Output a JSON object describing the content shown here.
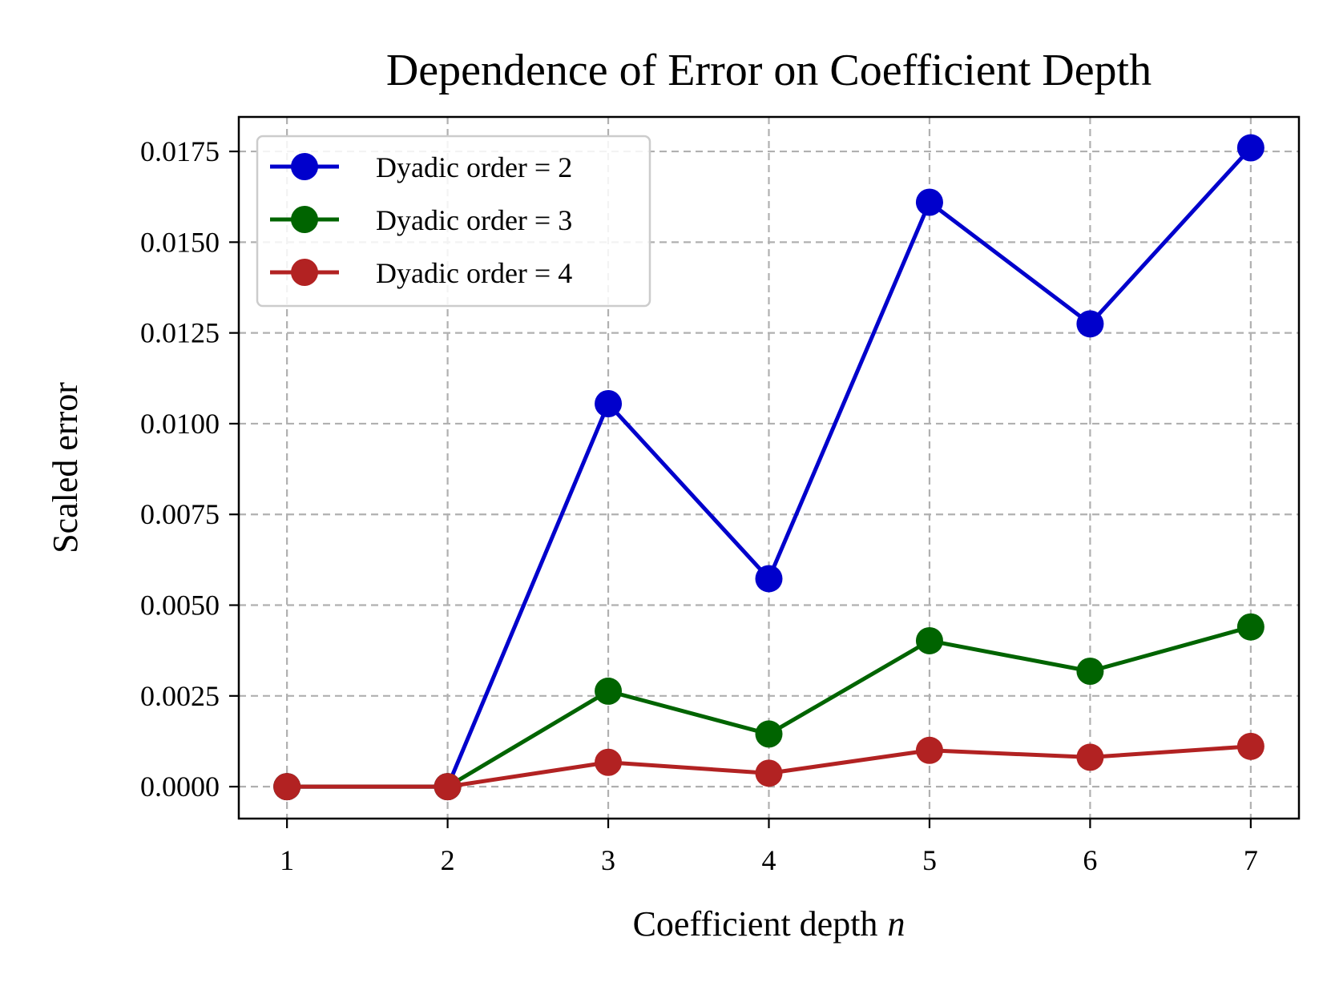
{
  "chart_data": {
    "type": "line",
    "title": "Dependence of Error on Coefficient Depth",
    "xlabel": "Coefficient depth",
    "xlabel_var": "n",
    "ylabel": "Scaled error",
    "x": [
      1,
      2,
      3,
      4,
      5,
      6,
      7
    ],
    "x_tick_labels": [
      "1",
      "2",
      "3",
      "4",
      "5",
      "6",
      "7"
    ],
    "y_ticks": [
      0.0,
      0.0025,
      0.005,
      0.0075,
      0.01,
      0.0125,
      0.015,
      0.0175
    ],
    "y_tick_labels": [
      "0.0000",
      "0.0025",
      "0.0050",
      "0.0075",
      "0.0100",
      "0.0125",
      "0.0150",
      "0.0175"
    ],
    "xlim": [
      0.7,
      7.3
    ],
    "ylim": [
      -0.00088,
      0.01845
    ],
    "grid": true,
    "legend_position": "top-left",
    "series": [
      {
        "name": "Dyadic order = 2",
        "color": "#0000cc",
        "values": [
          0.0,
          0.0,
          0.01055,
          0.00573,
          0.0161,
          0.01275,
          0.0176
        ]
      },
      {
        "name": "Dyadic order = 3",
        "color": "#006400",
        "values": [
          0.0,
          0.0,
          0.00263,
          0.00145,
          0.00402,
          0.00318,
          0.0044
        ]
      },
      {
        "name": "Dyadic order = 4",
        "color": "#b22222",
        "values": [
          0.0,
          0.0,
          0.00067,
          0.00037,
          0.001,
          0.00081,
          0.00111
        ]
      }
    ]
  }
}
